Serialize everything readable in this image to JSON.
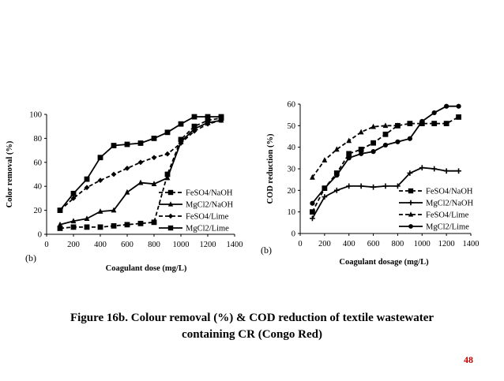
{
  "caption": {
    "line1": "Figure 16b. Colour removal (%) & COD reduction of textile wastewater",
    "line2": "containing CR (Congo Red)"
  },
  "page_number": "48",
  "chart_data": [
    {
      "type": "line",
      "panel_label": "(b)",
      "xlabel": "Coagulant dose (mg/L)",
      "ylabel": "Color removal (%)",
      "xlim": [
        0,
        1400
      ],
      "ylim": [
        0,
        100
      ],
      "x_ticks": [
        0,
        200,
        400,
        600,
        800,
        1000,
        1200,
        1400
      ],
      "y_ticks": [
        0,
        20,
        40,
        60,
        80,
        100
      ],
      "grid": false,
      "legend_position": "bottom-right",
      "series": [
        {
          "name": "FeSO4/NaOH",
          "marker": "square",
          "dash": "dashed",
          "x": [
            100,
            200,
            300,
            400,
            500,
            600,
            700,
            800,
            900,
            1000,
            1100,
            1200,
            1300
          ],
          "y": [
            5,
            6,
            6,
            6,
            7,
            8,
            9,
            10,
            50,
            79,
            90,
            95,
            97
          ]
        },
        {
          "name": "MgCl2/NaOH",
          "marker": "triangle",
          "dash": "solid",
          "x": [
            100,
            200,
            300,
            400,
            500,
            600,
            700,
            800,
            900,
            1000,
            1100,
            1200,
            1300
          ],
          "y": [
            8,
            11,
            13,
            19,
            20,
            35,
            43,
            42,
            47,
            77,
            88,
            93,
            95
          ]
        },
        {
          "name": "FeSO4/Lime",
          "marker": "diamond",
          "dash": "dashed",
          "x": [
            100,
            200,
            300,
            400,
            500,
            600,
            700,
            800,
            900,
            1000,
            1100,
            1200,
            1300
          ],
          "y": [
            20,
            30,
            39,
            45,
            50,
            55,
            60,
            64,
            67,
            76,
            86,
            92,
            95
          ]
        },
        {
          "name": "MgCl2/Lime",
          "marker": "square",
          "dash": "solid",
          "x": [
            100,
            200,
            300,
            400,
            500,
            600,
            700,
            800,
            900,
            1000,
            1100,
            1200,
            1300
          ],
          "y": [
            20,
            34,
            46,
            64,
            74,
            75,
            76,
            80,
            85,
            92,
            98,
            98,
            98
          ]
        }
      ]
    },
    {
      "type": "line",
      "panel_label": "(b)",
      "xlabel": "Coagulant dosage (mg/L)",
      "ylabel": "COD reduction (%)",
      "xlim": [
        0,
        1400
      ],
      "ylim": [
        0,
        60
      ],
      "x_ticks": [
        0,
        200,
        400,
        600,
        800,
        1000,
        1200,
        1400
      ],
      "y_ticks": [
        0,
        10,
        20,
        30,
        40,
        50,
        60
      ],
      "grid": false,
      "legend_position": "bottom-right",
      "series": [
        {
          "name": "FeSO4/NaOH",
          "marker": "square",
          "dash": "dashed",
          "x": [
            100,
            200,
            300,
            400,
            500,
            600,
            700,
            800,
            900,
            1000,
            1100,
            1200,
            1300
          ],
          "y": [
            10,
            21,
            28,
            37,
            39,
            42,
            46,
            50,
            51,
            51,
            51,
            51,
            54
          ]
        },
        {
          "name": "MgCl2/NaOH",
          "marker": "plus",
          "dash": "solid",
          "x": [
            100,
            200,
            300,
            400,
            500,
            600,
            700,
            800,
            900,
            1000,
            1100,
            1200,
            1300
          ],
          "y": [
            7,
            17,
            20,
            22,
            22,
            21.5,
            22,
            22,
            28,
            30.5,
            30,
            29,
            29
          ]
        },
        {
          "name": "FeSO4/Lime",
          "marker": "triangle",
          "dash": "dashed",
          "x": [
            100,
            200,
            300,
            400,
            500,
            600,
            700,
            800
          ],
          "y": [
            26,
            34,
            39,
            43,
            47,
            49.5,
            50,
            50
          ]
        },
        {
          "name": "MgCl2/Lime",
          "marker": "circle",
          "dash": "solid",
          "x": [
            100,
            200,
            300,
            400,
            500,
            600,
            700,
            800,
            900,
            1000,
            1100,
            1200,
            1300
          ],
          "y": [
            14,
            21,
            27,
            35,
            37,
            38,
            41,
            42.5,
            44,
            52,
            56,
            59,
            59
          ]
        }
      ]
    }
  ]
}
